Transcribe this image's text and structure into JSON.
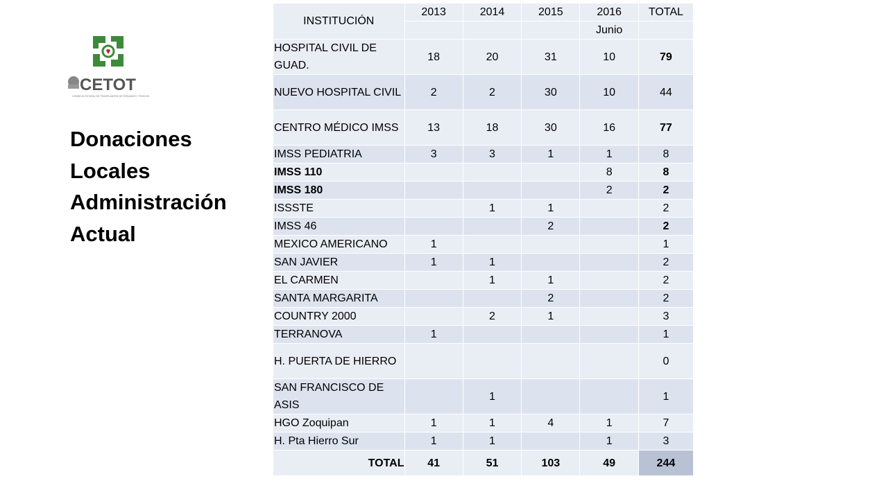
{
  "slide": {
    "title_lines": [
      "Donaciones",
      "Locales",
      "Administración",
      "Actual"
    ]
  },
  "logo": {
    "icon": "cetot-logo-icon",
    "text": "CETOT",
    "subtext": "CONSEJO ESTATAL DE TRASPLANTES DE ÓRGANOS Y TEJIDOS",
    "colors": {
      "green": "#3c8a3a",
      "red": "#c0282d",
      "gray": "#555555"
    }
  },
  "table": {
    "headers": {
      "institution": "INSTITUCIÓN",
      "years": [
        "2013",
        "2014",
        "2015",
        "2016"
      ],
      "total": "TOTAL",
      "sub": [
        "",
        "",
        "",
        "Junio",
        ""
      ]
    },
    "rows": [
      {
        "name": "HOSPITAL CIVIL DE GUAD.",
        "values": [
          "18",
          "20",
          "31",
          "10"
        ],
        "total": "79",
        "name_bold": false,
        "total_bold": true
      },
      {
        "name": "NUEVO HOSPITAL CIVIL",
        "values": [
          "2",
          "2",
          "30",
          "10"
        ],
        "total": "44",
        "name_bold": false,
        "total_bold": false
      },
      {
        "name": "CENTRO MÉDICO IMSS",
        "values": [
          "13",
          "18",
          "30",
          "16"
        ],
        "total": "77",
        "name_bold": false,
        "total_bold": true
      },
      {
        "name": "IMSS PEDIATRIA",
        "values": [
          "3",
          "3",
          "1",
          "1"
        ],
        "total": "8",
        "name_bold": false,
        "total_bold": false
      },
      {
        "name": "IMSS 110",
        "values": [
          "",
          "",
          "",
          "8"
        ],
        "total": "8",
        "name_bold": true,
        "total_bold": true
      },
      {
        "name": "IMSS 180",
        "values": [
          "",
          "",
          "",
          "2"
        ],
        "total": "2",
        "name_bold": true,
        "total_bold": true
      },
      {
        "name": "ISSSTE",
        "values": [
          "",
          "1",
          "1",
          ""
        ],
        "total": "2",
        "name_bold": false,
        "total_bold": false
      },
      {
        "name": "IMSS 46",
        "values": [
          "",
          "",
          "2",
          ""
        ],
        "total": "2",
        "name_bold": false,
        "total_bold": true
      },
      {
        "name": "MEXICO AMERICANO",
        "values": [
          "1",
          "",
          "",
          ""
        ],
        "total": "1",
        "name_bold": false,
        "total_bold": false
      },
      {
        "name": "SAN JAVIER",
        "values": [
          "1",
          "1",
          "",
          ""
        ],
        "total": "2",
        "name_bold": false,
        "total_bold": false
      },
      {
        "name": "EL CARMEN",
        "values": [
          "",
          "1",
          "1",
          ""
        ],
        "total": "2",
        "name_bold": false,
        "total_bold": false
      },
      {
        "name": "SANTA MARGARITA",
        "values": [
          "",
          "",
          "2",
          ""
        ],
        "total": "2",
        "name_bold": false,
        "total_bold": false
      },
      {
        "name": "COUNTRY 2000",
        "values": [
          "",
          "2",
          "1",
          ""
        ],
        "total": "3",
        "name_bold": false,
        "total_bold": false
      },
      {
        "name": "TERRANOVA",
        "values": [
          "1",
          "",
          "",
          ""
        ],
        "total": "1",
        "name_bold": false,
        "total_bold": false
      },
      {
        "name": "H. PUERTA DE HIERRO",
        "values": [
          "",
          "",
          "",
          ""
        ],
        "total": "0",
        "name_bold": false,
        "total_bold": false
      },
      {
        "name": "SAN FRANCISCO DE ASIS",
        "values": [
          "",
          "1",
          "",
          ""
        ],
        "total": "1",
        "name_bold": false,
        "total_bold": false
      },
      {
        "name": "HGO Zoquipan",
        "values": [
          "1",
          "1",
          "4",
          "1"
        ],
        "total": "7",
        "name_bold": false,
        "total_bold": false
      },
      {
        "name": "H. Pta Hierro Sur",
        "values": [
          "1",
          "1",
          "",
          "1"
        ],
        "total": "3",
        "name_bold": false,
        "total_bold": false
      }
    ],
    "total_row": {
      "label": "TOTAL",
      "values": [
        "41",
        "51",
        "103",
        "49"
      ],
      "total": "244"
    },
    "colors": {
      "row_light": "#e9edf4",
      "row_dark": "#dde3ee",
      "grand_total_bg": "#b8c2d4"
    }
  }
}
